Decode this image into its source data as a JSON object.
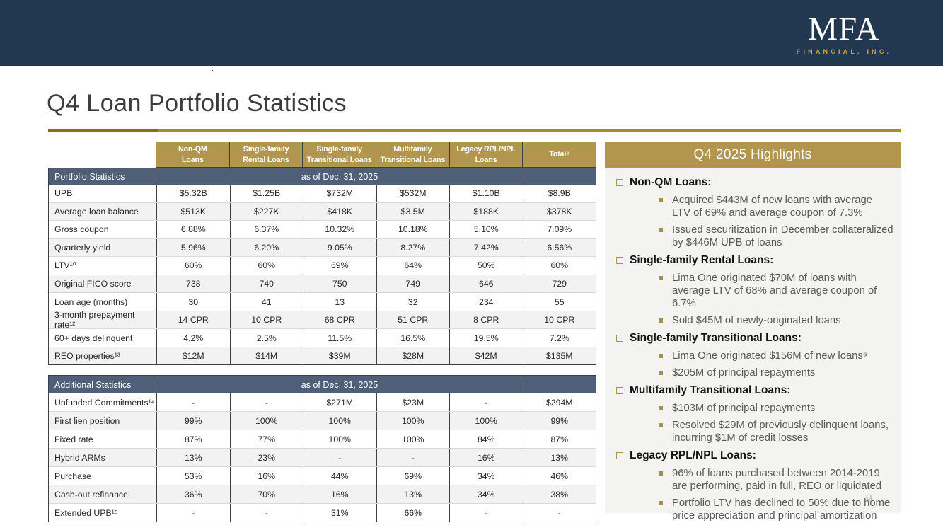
{
  "topbar": {
    "logo_line1": "MFA",
    "logo_line2": "FINANCIAL, INC."
  },
  "title": "Q4 Loan Portfolio Statistics",
  "page_number": "9",
  "as_of_label": "as of Dec. 31, 2025",
  "columns": [
    "Non-QM\nLoans",
    "Single-family\nRental Loans",
    "Single-family\nTransitional Loans",
    "Multifamily\nTransitional Loans",
    "Legacy RPL/NPL\nLoans",
    "Total⁹"
  ],
  "portfolio_table": {
    "section_label": "Portfolio Statistics",
    "rows": [
      {
        "label": "UPB",
        "values": [
          "$5.32B",
          "$1.25B",
          "$732M",
          "$532M",
          "$1.10B",
          "$8.9B"
        ]
      },
      {
        "label": "Average loan balance",
        "values": [
          "$513K",
          "$227K",
          "$418K",
          "$3.5M",
          "$188K",
          "$378K"
        ]
      },
      {
        "label": "Gross coupon",
        "values": [
          "6.88%",
          "6.37%",
          "10.32%",
          "10.18%",
          "5.10%",
          "7.09%"
        ]
      },
      {
        "label": "Quarterly yield",
        "values": [
          "5.96%",
          "6.20%",
          "9.05%",
          "8.27%",
          "7.42%",
          "6.56%"
        ]
      },
      {
        "label": "LTV¹⁰",
        "values": [
          "60%",
          "60%",
          "69%",
          "64%",
          "50%",
          "60%"
        ]
      },
      {
        "label": "Original FICO score",
        "values": [
          "738",
          "740",
          "750",
          "749",
          "646",
          "729"
        ]
      },
      {
        "label": "Loan age (months)",
        "values": [
          "30",
          "41",
          "13",
          "32",
          "234",
          "55"
        ]
      },
      {
        "label": "3-month prepayment rate¹²",
        "values": [
          "14 CPR",
          "10 CPR",
          "68 CPR",
          "51 CPR",
          "8 CPR",
          "10 CPR"
        ]
      },
      {
        "label": "60+ days delinquent",
        "values": [
          "4.2%",
          "2.5%",
          "11.5%",
          "16.5%",
          "19.5%",
          "7.2%"
        ]
      },
      {
        "label": "REO properties¹³",
        "values": [
          "$12M",
          "$14M",
          "$39M",
          "$28M",
          "$42M",
          "$135M"
        ]
      }
    ]
  },
  "additional_table": {
    "section_label": "Additional Statistics",
    "rows": [
      {
        "label": "Unfunded Commitments¹⁴",
        "values": [
          "-",
          "-",
          "$271M",
          "$23M",
          "-",
          "$294M"
        ]
      },
      {
        "label": "First lien position",
        "values": [
          "99%",
          "100%",
          "100%",
          "100%",
          "100%",
          "99%"
        ]
      },
      {
        "label": "Fixed rate",
        "values": [
          "87%",
          "77%",
          "100%",
          "100%",
          "84%",
          "87%"
        ]
      },
      {
        "label": "Hybrid ARMs",
        "values": [
          "13%",
          "23%",
          "-",
          "-",
          "16%",
          "13%"
        ]
      },
      {
        "label": "Purchase",
        "values": [
          "53%",
          "16%",
          "44%",
          "69%",
          "34%",
          "46%"
        ]
      },
      {
        "label": "Cash-out refinance",
        "values": [
          "36%",
          "70%",
          "16%",
          "13%",
          "34%",
          "38%"
        ]
      },
      {
        "label": "Extended UPB¹⁵",
        "values": [
          "-",
          "-",
          "31%",
          "66%",
          "-",
          "-"
        ]
      }
    ]
  },
  "highlights": {
    "title": "Q4 2025 Highlights",
    "groups": [
      {
        "heading": "Non-QM Loans:",
        "items": [
          "Acquired $443M of new loans with average LTV of 69% and average coupon of 7.3%",
          "Issued securitization in December collateralized by $446M UPB of loans"
        ]
      },
      {
        "heading": "Single-family Rental Loans:",
        "items": [
          "Lima One originated $70M of loans with average LTV of 68% and average coupon of 6.7%",
          "Sold $45M of newly-originated loans"
        ]
      },
      {
        "heading": "Single-family Transitional Loans:",
        "items": [
          "Lima One originated $156M of new loans⁶",
          "$205M of principal repayments"
        ]
      },
      {
        "heading": "Multifamily Transitional Loans:",
        "items": [
          "$103M of principal repayments",
          "Resolved $29M of previously delinquent loans, incurring $1M of credit losses"
        ]
      },
      {
        "heading": "Legacy RPL/NPL Loans:",
        "items": [
          "96% of loans purchased between 2014-2019 are performing, paid in full, REO or liquidated",
          "Portfolio LTV has declined to 50% due to home price appreciation and principal amortization"
        ]
      }
    ]
  },
  "colors": {
    "navy": "#223850",
    "gold": "#B2954E",
    "gold_dark": "#8A6E1B",
    "gold_light": "#A98A1F",
    "slate": "#4E5F77",
    "stripe": "#F2F2F2",
    "panel": "#F3F3F1"
  }
}
